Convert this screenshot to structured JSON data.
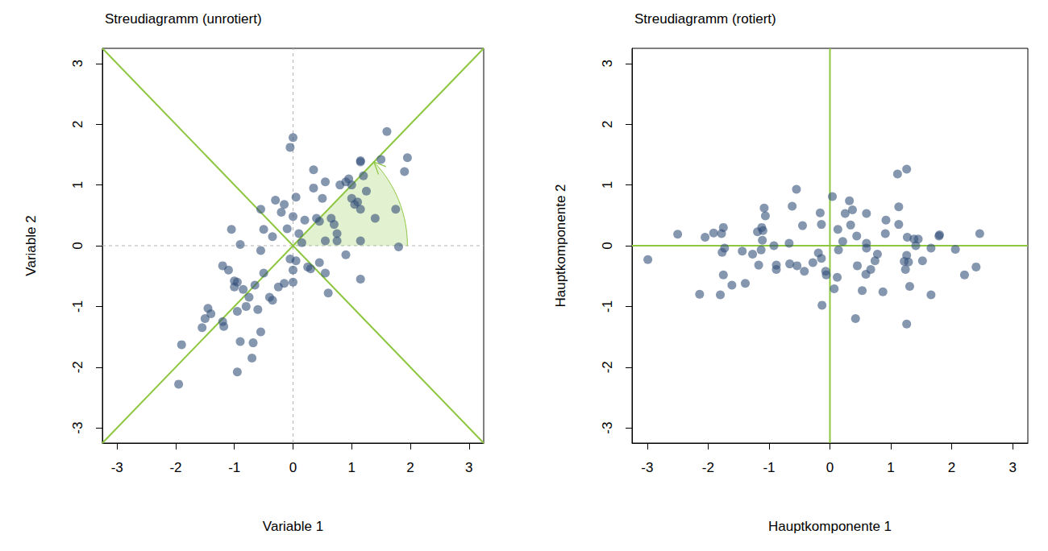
{
  "chart_data": [
    {
      "type": "scatter",
      "title": "Streudiagramm (unrotiert)",
      "x_label": "Variable 1",
      "y_label": "Variable 2",
      "color": "#34507a",
      "xlim": [
        -3.25,
        3.25
      ],
      "ylim": [
        -3.25,
        3.25
      ],
      "xticks": [
        -3,
        -2,
        -1,
        0,
        1,
        2,
        3
      ],
      "yticks": [
        -3,
        -2,
        -1,
        0,
        1,
        2,
        3
      ],
      "grid": false,
      "x": [
        -1.95,
        -1.9,
        -1.55,
        -1.5,
        -1.45,
        -1.4,
        -1.2,
        -1.18,
        -1.2,
        -1.1,
        -1.05,
        -1.0,
        -1.0,
        -0.95,
        -0.95,
        -0.95,
        -0.9,
        -0.9,
        -0.85,
        -0.8,
        -0.75,
        -0.7,
        -0.68,
        -0.65,
        -0.6,
        -0.55,
        -0.55,
        -0.55,
        -0.5,
        -0.5,
        -0.4,
        -0.35,
        -0.35,
        -0.3,
        -0.25,
        -0.2,
        -0.15,
        -0.15,
        -0.1,
        -0.05,
        0.0,
        0.0,
        -0.05,
        0.0,
        0.0,
        0.05,
        0.05,
        0.1,
        0.15,
        0.2,
        0.25,
        0.3,
        0.35,
        0.35,
        0.4,
        0.45,
        0.45,
        0.5,
        0.55,
        0.55,
        0.55,
        0.6,
        0.65,
        0.7,
        0.75,
        0.75,
        0.8,
        0.9,
        0.9,
        0.95,
        1.0,
        1.0,
        1.05,
        1.1,
        1.15,
        1.15,
        1.15,
        1.15,
        1.15,
        1.2,
        1.25,
        1.4,
        1.5,
        1.6,
        1.75,
        1.8,
        1.9,
        1.95
      ],
      "y": [
        -2.28,
        -1.63,
        -1.35,
        -1.2,
        -1.03,
        -1.12,
        -1.25,
        -1.33,
        -0.33,
        -0.4,
        0.27,
        -0.58,
        -0.68,
        -0.6,
        -1.08,
        -2.08,
        -1.58,
        0.02,
        -0.72,
        -1.0,
        -0.85,
        -1.85,
        -1.6,
        -0.65,
        -1.05,
        -1.42,
        0.6,
        -0.08,
        0.27,
        -0.45,
        -0.85,
        -0.9,
        0.15,
        0.75,
        -0.68,
        0.55,
        0.68,
        -0.62,
        0.28,
        1.62,
        1.78,
        0.48,
        -0.22,
        -0.4,
        -0.6,
        -0.25,
        0.8,
        0.2,
        0.05,
        0.42,
        -0.35,
        -0.38,
        1.25,
        0.95,
        0.45,
        0.4,
        -0.28,
        0.78,
        1.05,
        0.08,
        -0.45,
        -0.78,
        0.45,
        0.35,
        0.2,
        0.08,
        1.0,
        -0.15,
        1.05,
        1.1,
        0.78,
        1.0,
        0.68,
        0.72,
        1.4,
        1.38,
        0.6,
        0.08,
        -0.55,
        1.15,
        0.9,
        0.45,
        1.42,
        1.88,
        0.6,
        -0.02,
        1.22,
        1.45
      ],
      "lines": [
        {
          "x": [
            -3.25,
            3.25
          ],
          "y": [
            0,
            0
          ],
          "color": "#b3b3b3",
          "line_style": "dashed"
        },
        {
          "x": [
            0,
            0
          ],
          "y": [
            -3.25,
            3.25
          ],
          "color": "#b3b3b3",
          "line_style": "dashed"
        },
        {
          "x": [
            -3.25,
            3.25
          ],
          "y": [
            -3.25,
            3.25
          ],
          "color": "#8dc63f",
          "line_style": "solid"
        },
        {
          "x": [
            -3.25,
            3.25
          ],
          "y": [
            3.25,
            -3.25
          ],
          "color": "#8dc63f",
          "line_style": "solid"
        }
      ],
      "angle_arc": {
        "radius": 1.95,
        "angles": [
          0,
          45
        ],
        "color": "#8dc63f"
      }
    },
    {
      "type": "scatter",
      "title": "Streudiagramm (rotiert)",
      "x_label": "Hauptkomponente 1",
      "y_label": "Hauptkomponente 2",
      "color": "#34507a",
      "xlim": [
        -3.25,
        3.25
      ],
      "ylim": [
        -3.25,
        3.25
      ],
      "xticks": [
        -3,
        -2,
        -1,
        0,
        1,
        2,
        3
      ],
      "yticks": [
        -3,
        -2,
        -1,
        0,
        1,
        2,
        3
      ],
      "grid": false,
      "x": [
        -2.99,
        -2.5,
        -2.05,
        -1.91,
        -1.75,
        -1.78,
        -1.73,
        -1.77,
        -1.08,
        -1.06,
        -0.55,
        -1.12,
        -1.19,
        -1.1,
        -1.44,
        -2.14,
        -1.75,
        -0.62,
        -1.11,
        -1.27,
        -1.13,
        -1.8,
        -1.61,
        -0.92,
        -1.17,
        -1.39,
        0.04,
        -0.45,
        -0.16,
        -0.67,
        -0.88,
        -0.88,
        -0.14,
        0.32,
        -0.66,
        0.25,
        0.37,
        -0.54,
        0.13,
        1.11,
        1.26,
        0.34,
        -0.19,
        -0.28,
        -0.42,
        -0.14,
        0.6,
        0.21,
        0.14,
        0.44,
        -0.07,
        -0.06,
        1.13,
        0.92,
        0.6,
        0.6,
        0.12,
        0.91,
        1.13,
        0.45,
        0.07,
        -0.13,
        0.78,
        0.74,
        0.67,
        0.59,
        1.27,
        0.53,
        1.38,
        1.45,
        1.26,
        1.41,
        1.22,
        1.29,
        1.8,
        1.79,
        1.24,
        0.87,
        0.42,
        1.66,
        1.52,
        1.31,
        2.06,
        2.46,
        1.66,
        1.26,
        2.21,
        2.4
      ],
      "y": [
        -0.23,
        0.19,
        0.14,
        0.21,
        0.3,
        0.2,
        -0.04,
        -0.11,
        0.62,
        0.49,
        0.93,
        0.3,
        0.23,
        0.25,
        -0.09,
        -0.8,
        -0.48,
        0.65,
        0.09,
        -0.14,
        -0.07,
        -0.81,
        -0.65,
        0,
        -0.32,
        -0.62,
        0.81,
        0.33,
        0.54,
        0.04,
        -0.32,
        -0.39,
        0.35,
        0.74,
        -0.3,
        0.53,
        0.59,
        -0.33,
        0.27,
        1.18,
        1.26,
        0.34,
        -0.12,
        -0.28,
        -0.42,
        -0.21,
        0.53,
        0.07,
        -0.07,
        0.16,
        -0.42,
        -0.48,
        0.64,
        0.42,
        0.04,
        -0.04,
        -0.52,
        0.2,
        0.35,
        -0.33,
        -0.71,
        -0.98,
        -0.14,
        -0.25,
        -0.39,
        -0.47,
        0.14,
        -0.74,
        0.11,
        0.11,
        -0.16,
        0,
        -0.26,
        -0.27,
        0.18,
        0.16,
        -0.39,
        -0.76,
        -1.2,
        -0.04,
        -0.25,
        -0.67,
        -0.06,
        0.2,
        -0.81,
        -1.29,
        -0.48,
        -0.35
      ],
      "lines": [
        {
          "x": [
            -3.25,
            3.25
          ],
          "y": [
            0,
            0
          ],
          "color": "#8dc63f",
          "line_style": "solid"
        },
        {
          "x": [
            0,
            0
          ],
          "y": [
            -3.25,
            3.25
          ],
          "color": "#8dc63f",
          "line_style": "solid"
        }
      ]
    }
  ]
}
